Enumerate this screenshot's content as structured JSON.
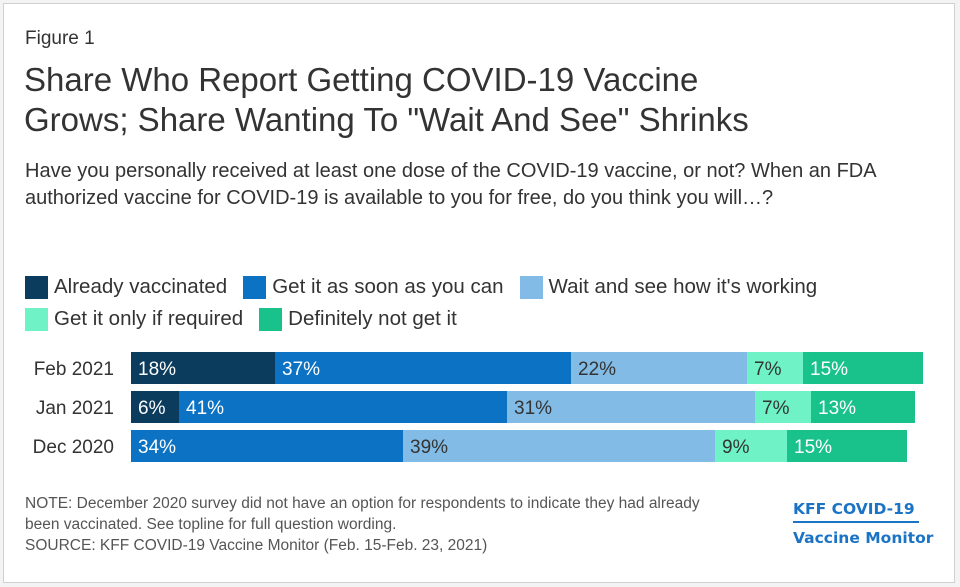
{
  "figure_label": "Figure 1",
  "title_lines": [
    "Share Who Report Getting COVID-19 Vaccine",
    "Grows; Share Wanting To \"Wait And See\" Shrinks"
  ],
  "subtitle": "Have you personally received at least one dose of the COVID-19 vaccine, or not? When an FDA authorized vaccine for COVID-19 is available to you for free, do you think you will…?",
  "colors": {
    "already": "#0b3c5d",
    "asap": "#0b72c4",
    "wait": "#82bbe6",
    "required": "#6ef2c6",
    "definitely_not": "#19c28a"
  },
  "legend": [
    {
      "label": "Already vaccinated",
      "color_key": "already"
    },
    {
      "label": "Get it as soon as you can",
      "color_key": "asap"
    },
    {
      "label": "Wait and see how it's working",
      "color_key": "wait"
    },
    {
      "label": "Get it only if required",
      "color_key": "required"
    },
    {
      "label": "Definitely not get it",
      "color_key": "definitely_not"
    }
  ],
  "chart_data": {
    "type": "bar",
    "orientation": "horizontal",
    "stacked": true,
    "categories": [
      "Feb 2021",
      "Jan 2021",
      "Dec 2020"
    ],
    "series": [
      {
        "name": "Already vaccinated",
        "color_key": "already",
        "values": [
          18,
          6,
          null
        ]
      },
      {
        "name": "Get it as soon as you can",
        "color_key": "asap",
        "values": [
          37,
          41,
          34
        ]
      },
      {
        "name": "Wait and see how it's working",
        "color_key": "wait",
        "values": [
          22,
          31,
          39
        ]
      },
      {
        "name": "Get it only if required",
        "color_key": "required",
        "values": [
          7,
          7,
          9
        ]
      },
      {
        "name": "Definitely not get it",
        "color_key": "definitely_not",
        "values": [
          15,
          13,
          15
        ]
      }
    ],
    "value_suffix": "%",
    "xlim": [
      0,
      100
    ],
    "grid": false,
    "legend_position": "top"
  },
  "note_lines": [
    "NOTE: December 2020 survey did not have an option for respondents to indicate they had already",
    "been vaccinated. See topline for full question wording."
  ],
  "source": "SOURCE: KFF COVID-19 Vaccine Monitor (Feb. 15-Feb. 23, 2021)",
  "brand": {
    "line1": "KFF COVID-19",
    "line2": "Vaccine Monitor"
  }
}
